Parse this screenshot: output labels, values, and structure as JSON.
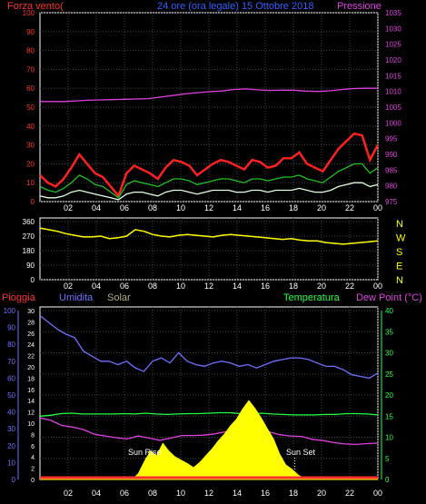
{
  "header": {
    "left_label": "Forza vento(",
    "title": "24 ore (ora legale) 15 Ottobre 2018",
    "right_label": "Pressione"
  },
  "colors": {
    "background": "#000000",
    "frame": "#ffffff",
    "grid": "#444444",
    "wind_axis": "#ff3030",
    "pressure_axis": "#e040e0",
    "wind_direction": "#ffff00",
    "pioggia": "#ff3030",
    "umidita": "#7070ff",
    "solar": "#b0b080",
    "temperatura": "#20ff40",
    "dew_point": "#e040e0",
    "cardinal": "#ffff00"
  },
  "chart_data": [
    {
      "type": "line",
      "name": "wind-pressure-panel",
      "x_ticks": [
        "02",
        "04",
        "06",
        "08",
        "10",
        "12",
        "14",
        "16",
        "18",
        "20",
        "22",
        "00"
      ],
      "y_left_ticks": [
        "0",
        "10",
        "20",
        "30",
        "40",
        "50",
        "60",
        "70",
        "80",
        "90",
        "100"
      ],
      "y_right_ticks": [
        "975",
        "980",
        "985",
        "990",
        "995",
        "1000",
        "1005",
        "1010",
        "1015",
        "1020",
        "1025",
        "1030",
        "1035"
      ],
      "ylim_left": [
        0,
        100
      ],
      "ylim_right": [
        975,
        1035
      ],
      "series": [
        {
          "key": "gust",
          "color": "#ff2020",
          "values": [
            14,
            10,
            8,
            12,
            18,
            25,
            20,
            15,
            13,
            8,
            3,
            15,
            19,
            17,
            15,
            12,
            18,
            22,
            21,
            19,
            14,
            17,
            20,
            22,
            21,
            19,
            17,
            22,
            21,
            18,
            19,
            23,
            23,
            26,
            20,
            18,
            16,
            22,
            28,
            32,
            36,
            35,
            22,
            30
          ]
        },
        {
          "key": "avg",
          "color": "#20c020",
          "values": [
            8,
            6,
            5,
            7,
            10,
            14,
            12,
            9,
            8,
            5,
            2,
            9,
            11,
            10,
            9,
            8,
            10,
            12,
            12,
            11,
            9,
            10,
            11,
            12,
            12,
            11,
            10,
            12,
            12,
            11,
            12,
            13,
            13,
            14,
            12,
            11,
            10,
            13,
            16,
            18,
            20,
            20,
            15,
            18
          ]
        },
        {
          "key": "min",
          "color": "#e0ffe0",
          "values": [
            3,
            2,
            2,
            3,
            5,
            6,
            5,
            4,
            3,
            2,
            1,
            4,
            5,
            5,
            4,
            3,
            5,
            6,
            6,
            5,
            4,
            5,
            6,
            6,
            6,
            5,
            5,
            6,
            6,
            5,
            6,
            6,
            6,
            7,
            6,
            5,
            5,
            6,
            8,
            9,
            10,
            10,
            8,
            9
          ]
        },
        {
          "key": "pressione",
          "color": "#e040e0",
          "values": [
            1006.8,
            1006.8,
            1006.8,
            1007.0,
            1007.2,
            1007.3,
            1007.4,
            1007.5,
            1007.6,
            1007.7,
            1008.2,
            1008.7,
            1009.2,
            1009.6,
            1009.9,
            1010.1,
            1010.6,
            1010.8,
            1010.5,
            1010.3,
            1010.4,
            1010.4,
            1010.1,
            1010.0,
            1010.2,
            1010.6,
            1010.9,
            1011.0,
            1011.0
          ]
        }
      ]
    },
    {
      "type": "line",
      "name": "wind-direction-panel",
      "x_ticks": [
        "02",
        "04",
        "06",
        "08",
        "10",
        "12",
        "14",
        "16",
        "18",
        "20",
        "22",
        "00"
      ],
      "y_ticks": [
        "0",
        "90",
        "180",
        "270",
        "360"
      ],
      "ylim": [
        0,
        360
      ],
      "cardinals": [
        "N",
        "W",
        "S",
        "E",
        "N"
      ],
      "series": [
        {
          "key": "direzione",
          "color": "#ffff00",
          "values": [
            320,
            310,
            300,
            285,
            275,
            265,
            265,
            270,
            255,
            260,
            270,
            310,
            300,
            280,
            270,
            265,
            275,
            280,
            275,
            270,
            265,
            275,
            280,
            275,
            270,
            265,
            260,
            255,
            250,
            255,
            245,
            240,
            240,
            230,
            225,
            220,
            225,
            230,
            235,
            240
          ]
        }
      ]
    },
    {
      "type": "line",
      "name": "weather-panel",
      "x_ticks": [
        "02",
        "04",
        "06",
        "08",
        "10",
        "12",
        "14",
        "16",
        "18",
        "20",
        "22",
        "00"
      ],
      "y_left_outer_ticks": [
        "0",
        "10",
        "20",
        "30",
        "40",
        "50",
        "60",
        "70",
        "80",
        "90",
        "100"
      ],
      "y_left_inner_ticks": [
        "0",
        "2",
        "4",
        "6",
        "8",
        "10",
        "12",
        "14",
        "16",
        "18",
        "20",
        "22",
        "24",
        "26",
        "28",
        "30"
      ],
      "y_right_ticks": [
        "0",
        "5",
        "10",
        "15",
        "20",
        "25",
        "30",
        "35",
        "40"
      ],
      "ylim_umidita": [
        0,
        100
      ],
      "ylim_temperatura": [
        0,
        40
      ],
      "ylim_solar": [
        0,
        30
      ],
      "labels": {
        "pioggia": "Pioggia",
        "umidita": "Umidita",
        "solar": "Solar",
        "temperatura": "Temperatura",
        "dew_point": "Dew Point (°C)"
      },
      "annotations": {
        "sun_rise": "Sun Rise",
        "sun_set": "Sun Set"
      },
      "sun_rise_hour": 7.5,
      "sun_set_hour": 18.1,
      "series": [
        {
          "key": "umidita",
          "color": "#7070ff",
          "values": [
            97,
            93,
            89,
            86,
            84,
            76,
            73,
            70,
            70,
            68,
            70,
            66,
            64,
            70,
            72,
            69,
            75,
            70,
            68,
            67,
            69,
            70,
            69,
            67,
            68,
            66,
            68,
            70,
            71,
            72,
            72,
            71,
            69,
            67,
            67,
            65,
            62,
            61,
            60,
            63
          ]
        },
        {
          "key": "temperatura",
          "color": "#20ff40",
          "values": [
            15.0,
            15.2,
            15.6,
            15.7,
            15.5,
            15.5,
            15.5,
            15.5,
            15.6,
            15.5,
            15.7,
            15.5,
            15.4,
            15.5,
            15.6,
            15.6,
            15.7,
            15.8,
            15.8,
            15.6,
            15.5,
            15.7,
            15.5,
            15.4,
            15.3,
            15.3,
            15.3,
            15.4,
            15.4,
            15.6,
            15.6,
            15.5,
            15.3
          ]
        },
        {
          "key": "dew_point",
          "color": "#e040e0",
          "values": [
            14.6,
            14.0,
            12.8,
            12.4,
            11.8,
            10.7,
            10.3,
            9.9,
            9.6,
            10.3,
            9.8,
            9.3,
            9.8,
            10.4,
            10.4,
            10.5,
            10.8,
            11.3,
            11.1,
            10.9,
            11.2,
            11.3,
            10.6,
            10.3,
            10.2,
            9.5,
            9.2,
            8.7,
            8.4,
            8.3,
            8.5,
            8.6
          ]
        },
        {
          "key": "solar",
          "color": "#ffff00",
          "values": [
            0,
            0,
            0,
            0,
            0,
            0,
            0,
            0,
            0,
            0,
            0,
            0,
            0,
            0,
            0,
            0,
            1.0,
            3.2,
            5.0,
            4.2,
            6.4,
            5.0,
            4.0,
            3.4,
            2.8,
            2.1,
            3.0,
            4.2,
            5.4,
            6.8,
            8.0,
            9.5,
            10.7,
            12.5,
            14.0,
            12.6,
            10.9,
            9.0,
            7.2,
            4.5,
            2.6,
            1.8,
            0.8,
            0.2,
            0,
            0,
            0,
            0,
            0,
            0,
            0,
            0,
            0,
            0,
            0,
            0
          ]
        },
        {
          "key": "pioggia",
          "color": "#ff3030",
          "values": [
            0,
            0,
            0,
            0,
            0,
            0,
            0,
            0,
            0,
            0,
            0,
            0,
            0,
            0,
            0,
            0,
            0,
            0,
            0,
            0,
            0,
            0,
            0,
            0,
            0
          ]
        }
      ]
    }
  ]
}
